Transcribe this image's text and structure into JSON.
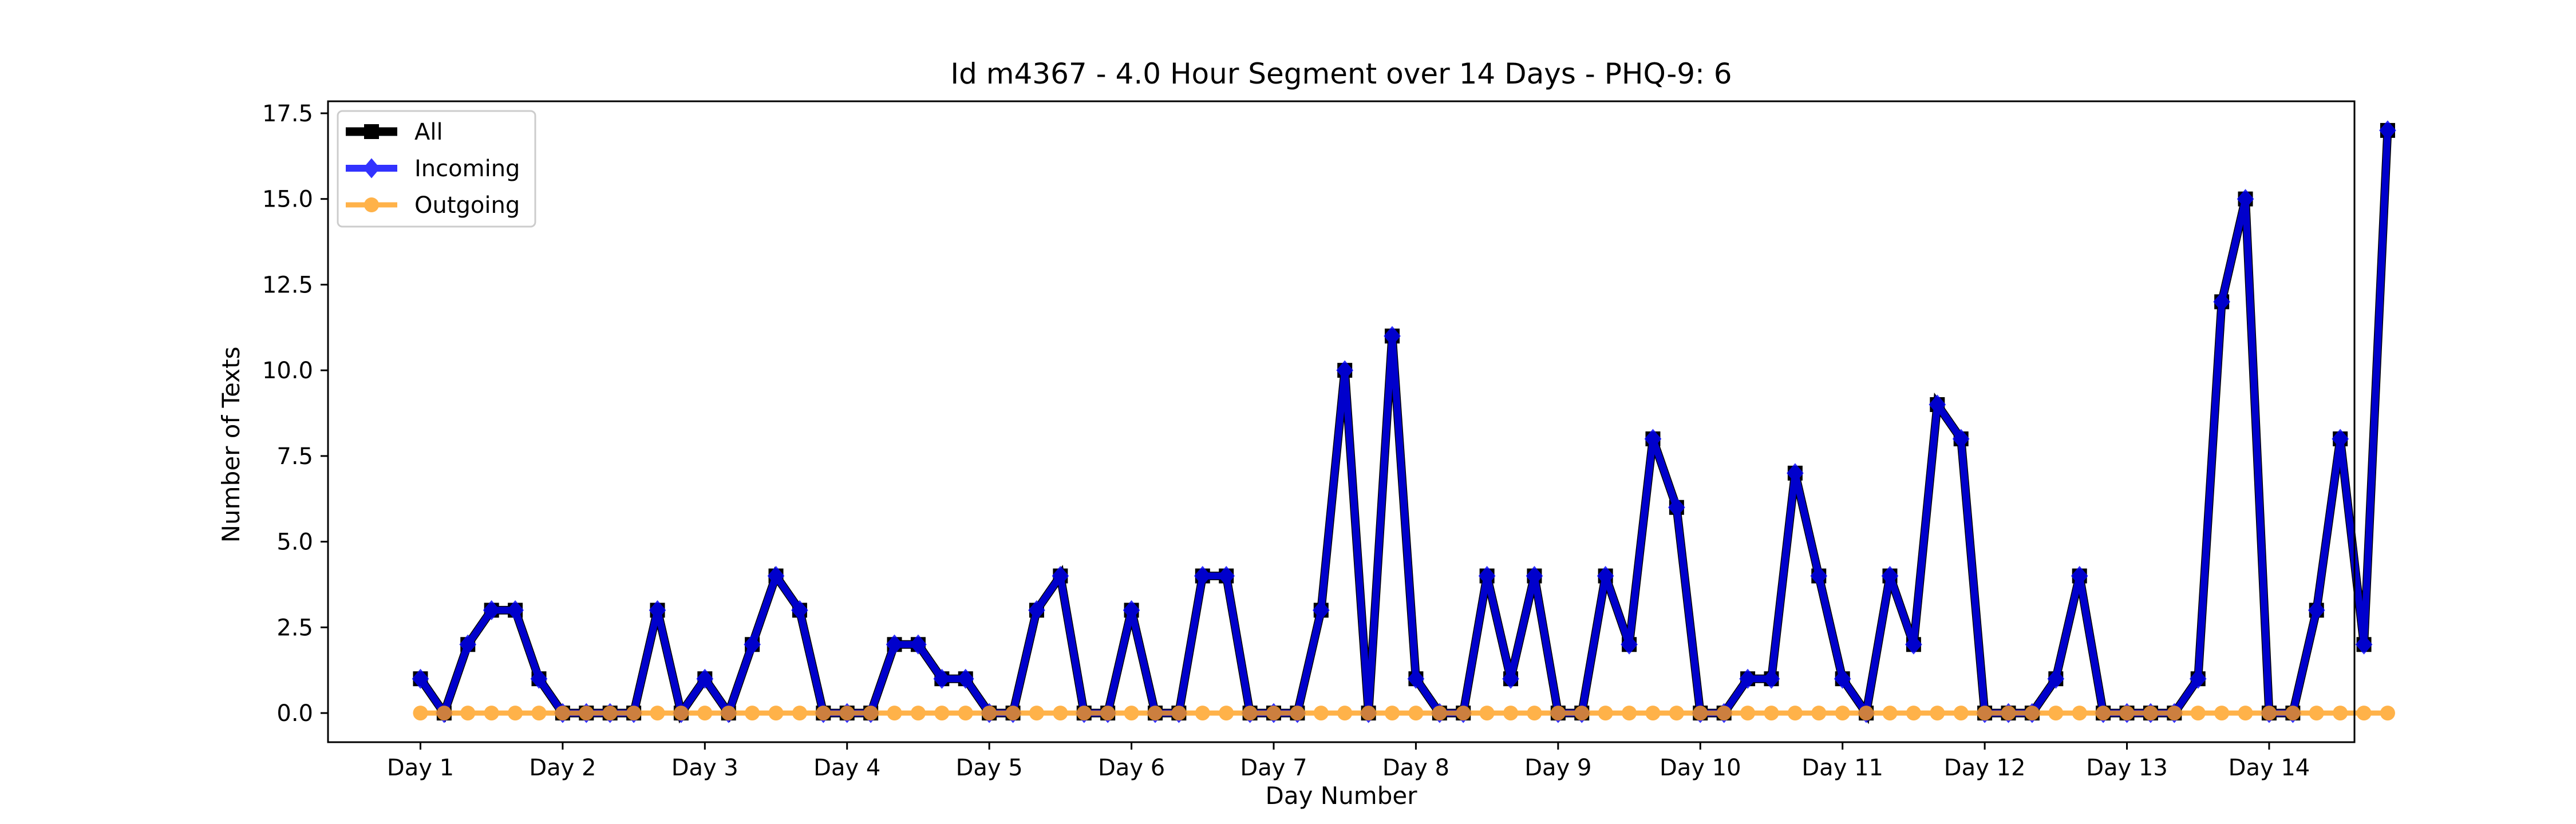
{
  "chart_data": {
    "type": "line",
    "title": "Id m4367 - 4.0 Hour Segment over 14 Days - PHQ-9: 6",
    "xlabel": "Day Number",
    "ylabel": "Number of Texts",
    "xlim": [
      -0.65,
      13.6
    ],
    "ylim": [
      -0.85,
      17.85
    ],
    "yticks": [
      0.0,
      2.5,
      5.0,
      7.5,
      10.0,
      12.5,
      15.0,
      17.5
    ],
    "ytick_labels": [
      "0.0",
      "2.5",
      "5.0",
      "7.5",
      "10.0",
      "12.5",
      "15.0",
      "17.5"
    ],
    "xticks": [
      0,
      1,
      2,
      3,
      4,
      5,
      6,
      7,
      8,
      9,
      10,
      11,
      12,
      13
    ],
    "xtick_labels": [
      "Day 1",
      "Day 2",
      "Day 3",
      "Day 4",
      "Day 5",
      "Day 6",
      "Day 7",
      "Day 8",
      "Day 9",
      "Day 10",
      "Day 11",
      "Day 12",
      "Day 13",
      "Day 14"
    ],
    "legend_position": "upper left",
    "grid": false,
    "x": [
      0.0,
      0.1667,
      0.3333,
      0.5,
      0.6667,
      0.8333,
      1.0,
      1.1667,
      1.3333,
      1.5,
      1.6667,
      1.8333,
      2.0,
      2.1667,
      2.3333,
      2.5,
      2.6667,
      2.8333,
      3.0,
      3.1667,
      3.3333,
      3.5,
      3.6667,
      3.8333,
      4.0,
      4.1667,
      4.3333,
      4.5,
      4.6667,
      4.8333,
      5.0,
      5.1667,
      5.3333,
      5.5,
      5.6667,
      5.8333,
      6.0,
      6.1667,
      6.3333,
      6.5,
      6.6667,
      6.8333,
      7.0,
      7.1667,
      7.3333,
      7.5,
      7.6667,
      7.8333,
      8.0,
      8.1667,
      8.3333,
      8.5,
      8.6667,
      8.8333,
      9.0,
      9.1667,
      9.3333,
      9.5,
      9.6667,
      9.8333,
      10.0,
      10.1667,
      10.3333,
      10.5,
      10.6667,
      10.8333,
      11.0,
      11.1667,
      11.3333,
      11.5,
      11.6667,
      11.8333,
      12.0,
      12.1667,
      12.3333,
      12.5,
      12.6667,
      12.8333,
      13.0,
      13.1667,
      13.3333,
      13.5,
      13.6667,
      13.8333
    ],
    "series": [
      {
        "name": "All",
        "color": "#000000",
        "marker": "square",
        "values": [
          1,
          0,
          2,
          3,
          3,
          1,
          0,
          0,
          0,
          0,
          3,
          0,
          1,
          0,
          2,
          4,
          3,
          0,
          0,
          0,
          2,
          2,
          1,
          1,
          0,
          0,
          3,
          4,
          0,
          0,
          3,
          0,
          0,
          4,
          4,
          0,
          0,
          0,
          3,
          10,
          0,
          11,
          1,
          0,
          0,
          4,
          1,
          4,
          0,
          0,
          4,
          2,
          8,
          6,
          0,
          0,
          1,
          1,
          7,
          4,
          1,
          0,
          4,
          2,
          9,
          8,
          0,
          0,
          0,
          1,
          4,
          0,
          0,
          0,
          0,
          1,
          12,
          15,
          0,
          0,
          3,
          8,
          2,
          17
        ]
      },
      {
        "name": "Incoming",
        "color": "#0000ff",
        "marker": "diamond",
        "values": [
          1,
          0,
          2,
          3,
          3,
          1,
          0,
          0,
          0,
          0,
          3,
          0,
          1,
          0,
          2,
          4,
          3,
          0,
          0,
          0,
          2,
          2,
          1,
          1,
          0,
          0,
          3,
          4,
          0,
          0,
          3,
          0,
          0,
          4,
          4,
          0,
          0,
          0,
          3,
          10,
          0,
          11,
          1,
          0,
          0,
          4,
          1,
          4,
          0,
          0,
          4,
          2,
          8,
          6,
          0,
          0,
          1,
          1,
          7,
          4,
          1,
          0,
          4,
          2,
          9,
          8,
          0,
          0,
          0,
          1,
          4,
          0,
          0,
          0,
          0,
          1,
          12,
          15,
          0,
          0,
          3,
          8,
          2,
          17
        ]
      },
      {
        "name": "Outgoing",
        "color": "#ff9f1c",
        "marker": "circle",
        "values": [
          0,
          0,
          0,
          0,
          0,
          0,
          0,
          0,
          0,
          0,
          0,
          0,
          0,
          0,
          0,
          0,
          0,
          0,
          0,
          0,
          0,
          0,
          0,
          0,
          0,
          0,
          0,
          0,
          0,
          0,
          0,
          0,
          0,
          0,
          0,
          0,
          0,
          0,
          0,
          0,
          0,
          0,
          0,
          0,
          0,
          0,
          0,
          0,
          0,
          0,
          0,
          0,
          0,
          0,
          0,
          0,
          0,
          0,
          0,
          0,
          0,
          0,
          0,
          0,
          0,
          0,
          0,
          0,
          0,
          0,
          0,
          0,
          0,
          0,
          0,
          0,
          0,
          0,
          0,
          0,
          0,
          0,
          0,
          0
        ]
      }
    ]
  }
}
